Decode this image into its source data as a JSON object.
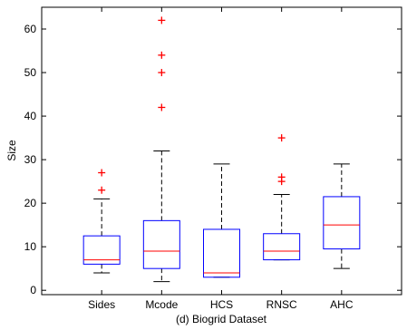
{
  "chart_data": {
    "type": "box",
    "title": "",
    "xlabel": "(d) Biogrid Dataset",
    "ylabel": "Size",
    "ylim": [
      -1,
      65
    ],
    "yticks": [
      0,
      10,
      20,
      30,
      40,
      50,
      60
    ],
    "grid": false,
    "categories": [
      "Sides",
      "Mcode",
      "HCS",
      "RNSC",
      "AHC"
    ],
    "boxes": [
      {
        "whisker_low": 4,
        "q1": 6,
        "median": 7,
        "q3": 12.5,
        "whisker_high": 21,
        "outliers": [
          23,
          27
        ]
      },
      {
        "whisker_low": 2,
        "q1": 5,
        "median": 9,
        "q3": 16,
        "whisker_high": 32,
        "outliers": [
          42,
          50,
          54,
          62
        ]
      },
      {
        "whisker_low": 3,
        "q1": 3,
        "median": 4,
        "q3": 14,
        "whisker_high": 29,
        "outliers": []
      },
      {
        "whisker_low": 7,
        "q1": 7,
        "median": 9,
        "q3": 13,
        "whisker_high": 22,
        "outliers": [
          25,
          26,
          35
        ]
      },
      {
        "whisker_low": 5,
        "q1": 9.5,
        "median": 15,
        "q3": 21.5,
        "whisker_high": 29,
        "outliers": []
      }
    ],
    "colors": {
      "box": "#0000ff",
      "median": "#ff0000",
      "whisker": "#000000",
      "outlier": "#ff0000"
    }
  }
}
